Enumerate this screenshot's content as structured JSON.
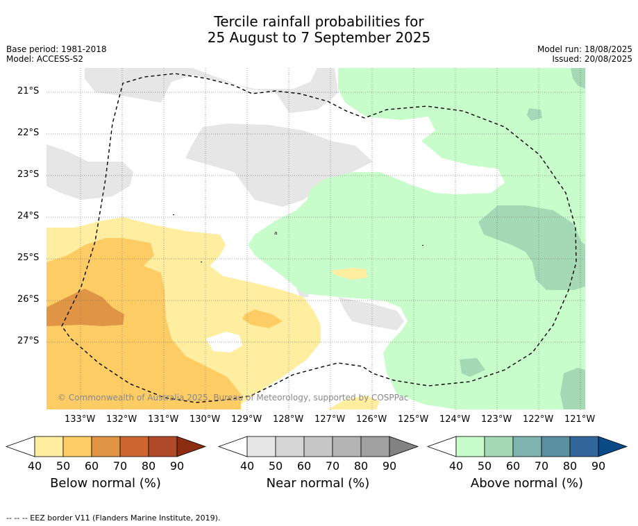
{
  "title": {
    "line1": "Tercile rainfall probabilities for",
    "line2": "25 August to 7 September 2025"
  },
  "meta": {
    "base_period": "Base period: 1981-2018",
    "model": "Model: ACCESS-S2",
    "model_run": "Model run: 18/08/2025",
    "issued": "Issued: 20/08/2025"
  },
  "map": {
    "copyright": "© Commonwealth of Australia 2025, Bureau of Meteorology, supported by COSPPac",
    "lat_labels": [
      "21°S",
      "22°S",
      "23°S",
      "24°S",
      "25°S",
      "26°S",
      "27°S"
    ],
    "lon_labels": [
      "133°W",
      "132°W",
      "131°W",
      "130°W",
      "129°W",
      "128°W",
      "127°W",
      "126°W",
      "125°W",
      "124°W",
      "123°W",
      "122°W",
      "121°W"
    ]
  },
  "colorbars": [
    {
      "label": "Below normal (%)",
      "ticks": [
        "40",
        "50",
        "60",
        "70",
        "80",
        "90"
      ],
      "colors": [
        "#ffffff",
        "#ffeda0",
        "#fecc65",
        "#e09545",
        "#cd6633",
        "#b04a28",
        "#8c2d12"
      ]
    },
    {
      "label": "Near normal (%)",
      "ticks": [
        "40",
        "50",
        "60",
        "70",
        "80",
        "90"
      ],
      "colors": [
        "#ffffff",
        "#e6e6e6",
        "#d6d6d6",
        "#c6c6c6",
        "#b4b4b4",
        "#a0a0a0",
        "#828282"
      ]
    },
    {
      "label": "Above normal (%)",
      "ticks": [
        "40",
        "50",
        "60",
        "70",
        "80",
        "90"
      ],
      "colors": [
        "#ffffff",
        "#c8fccb",
        "#a5d8b5",
        "#80b4b0",
        "#5a8fa0",
        "#33669a",
        "#0a4a86"
      ]
    }
  ],
  "footnote": "--  --  -- EEZ border V11 (Flanders Marine Institute, 2019)."
}
